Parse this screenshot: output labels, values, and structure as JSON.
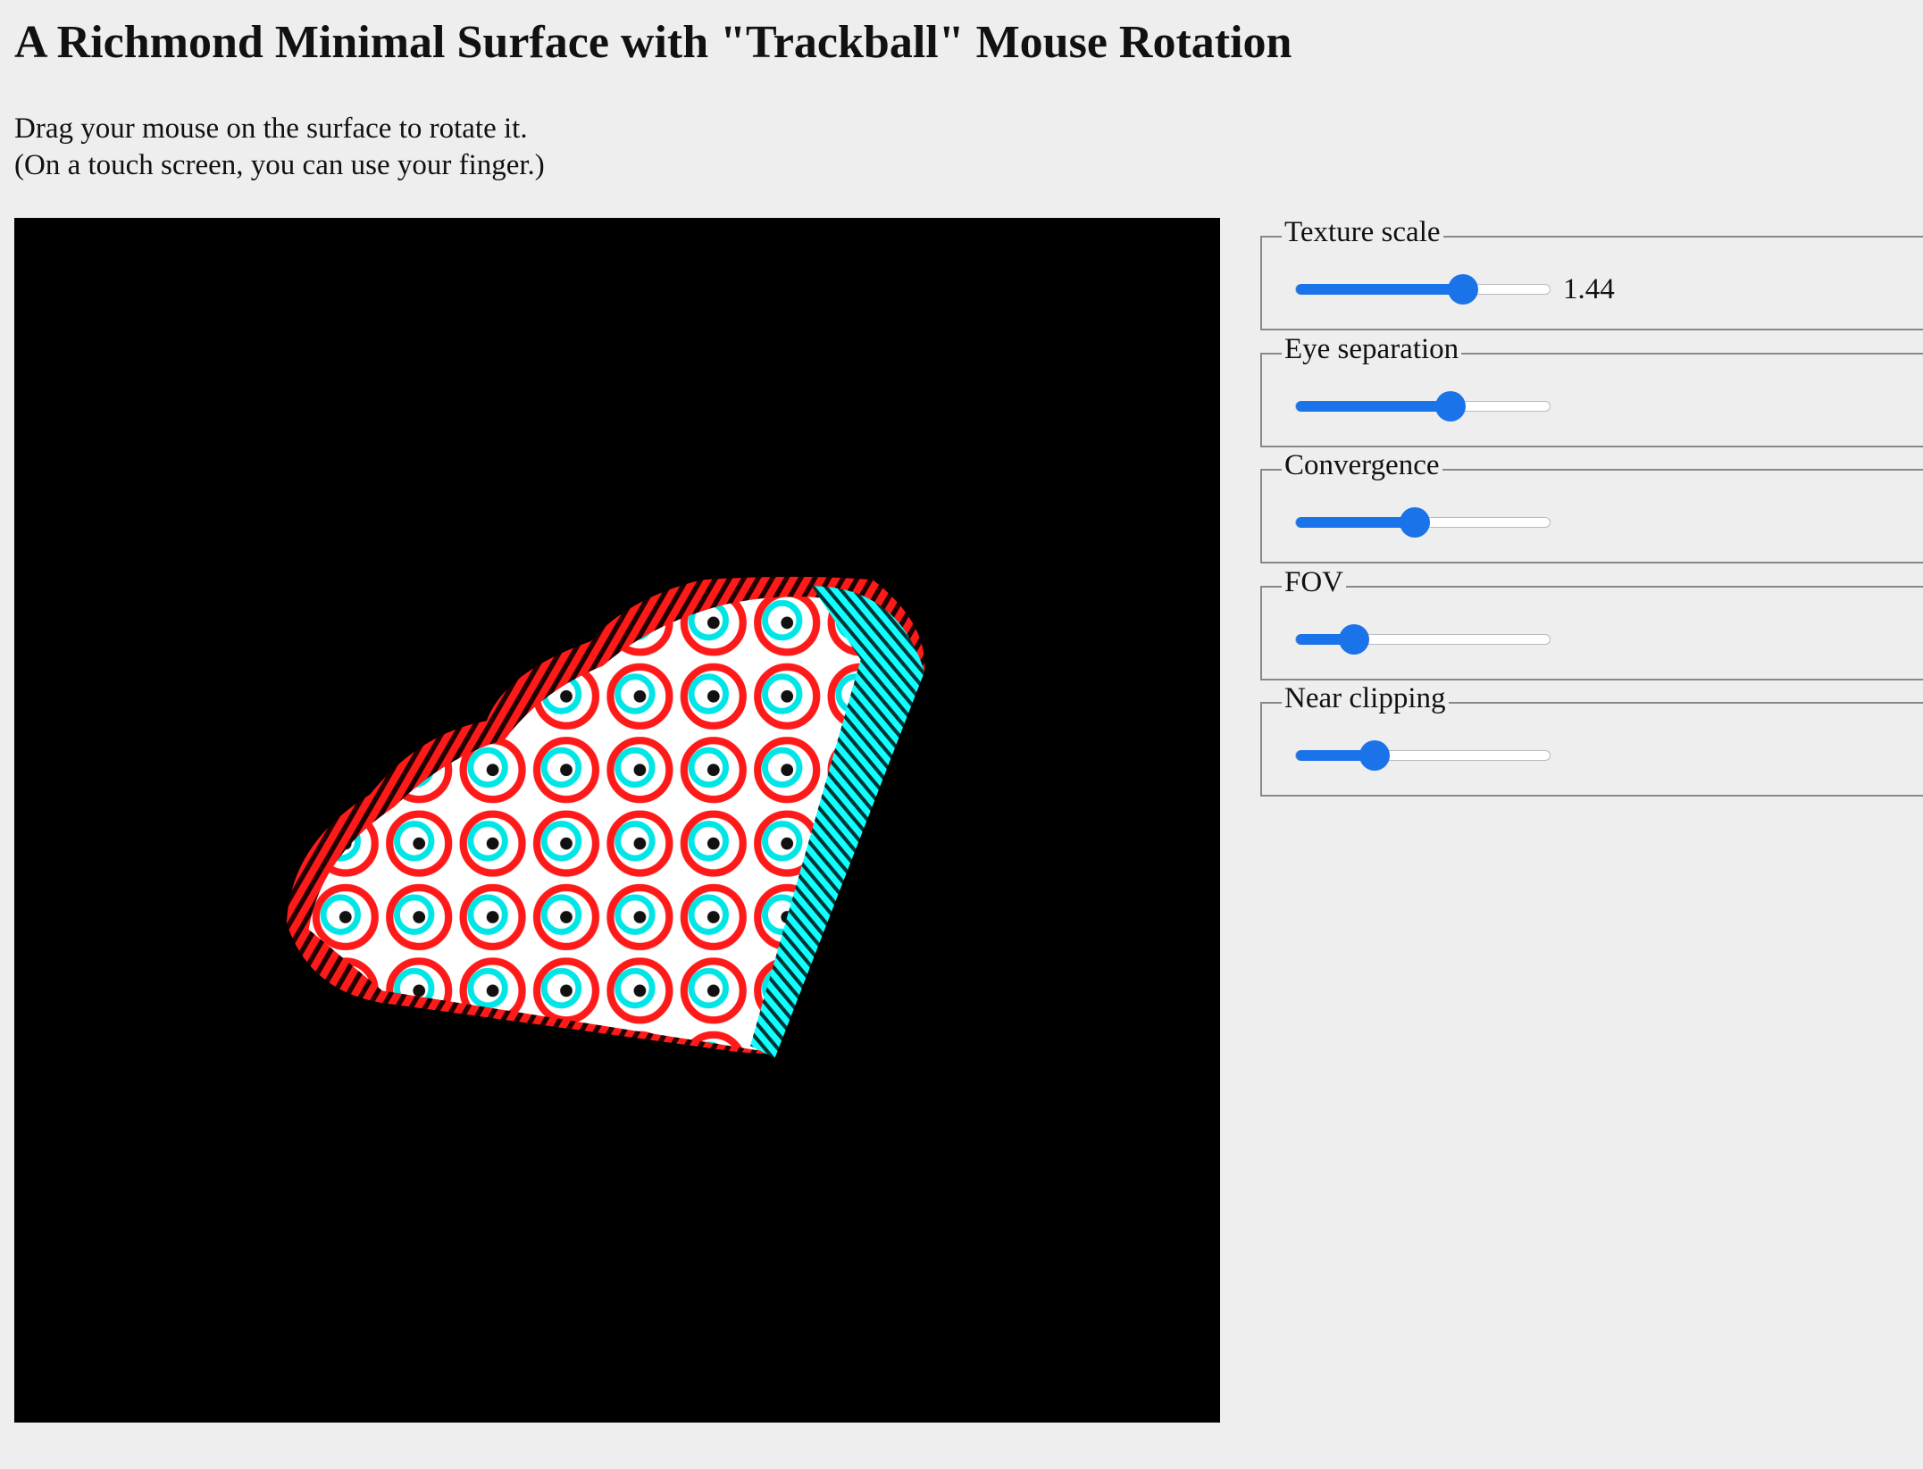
{
  "header": {
    "title": "A Richmond Minimal Surface with \"Trackball\" Mouse Rotation",
    "lines": [
      "Drag your mouse on the surface to rotate it.",
      "(On a touch screen, you can use your finger.)"
    ]
  },
  "controls": [
    {
      "label": "Texture scale",
      "position": 66,
      "value": 1.44
    },
    {
      "label": "Eye separation",
      "position": 61
    },
    {
      "label": "Convergence",
      "position": 47
    },
    {
      "label": "FOV",
      "position": 23
    },
    {
      "label": "Near clipping",
      "position": 31
    }
  ]
}
